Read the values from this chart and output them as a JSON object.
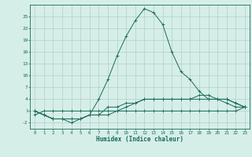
{
  "xlabel": "Humidex (Indice chaleur)",
  "bg_color": "#d6eee8",
  "grid_color": "#b0cfc8",
  "line_color": "#1a6b5a",
  "xlim": [
    -0.5,
    23.5
  ],
  "ylim": [
    -3.5,
    28
  ],
  "yticks": [
    -2,
    1,
    4,
    7,
    10,
    13,
    16,
    19,
    22,
    25
  ],
  "xticks": [
    0,
    1,
    2,
    3,
    4,
    5,
    6,
    7,
    8,
    9,
    10,
    11,
    12,
    13,
    14,
    15,
    16,
    17,
    18,
    19,
    20,
    21,
    22,
    23
  ],
  "series": [
    [
      1,
      0,
      -1,
      -1,
      -1,
      -1,
      0,
      4,
      9,
      15,
      20,
      24,
      27,
      26,
      23,
      16,
      11,
      9,
      6,
      4,
      4,
      4,
      3,
      2
    ],
    [
      1,
      0,
      -1,
      -1,
      -2,
      -1,
      0,
      0,
      2,
      2,
      3,
      3,
      4,
      4,
      4,
      4,
      4,
      4,
      5,
      5,
      4,
      3,
      2,
      2
    ],
    [
      1,
      0,
      -1,
      -1,
      -1,
      -1,
      0,
      0,
      0,
      1,
      2,
      3,
      4,
      4,
      4,
      4,
      4,
      4,
      4,
      4,
      4,
      4,
      3,
      2
    ],
    [
      0,
      1,
      1,
      1,
      1,
      1,
      1,
      1,
      1,
      1,
      1,
      1,
      1,
      1,
      1,
      1,
      1,
      1,
      1,
      1,
      1,
      1,
      1,
      2
    ]
  ]
}
